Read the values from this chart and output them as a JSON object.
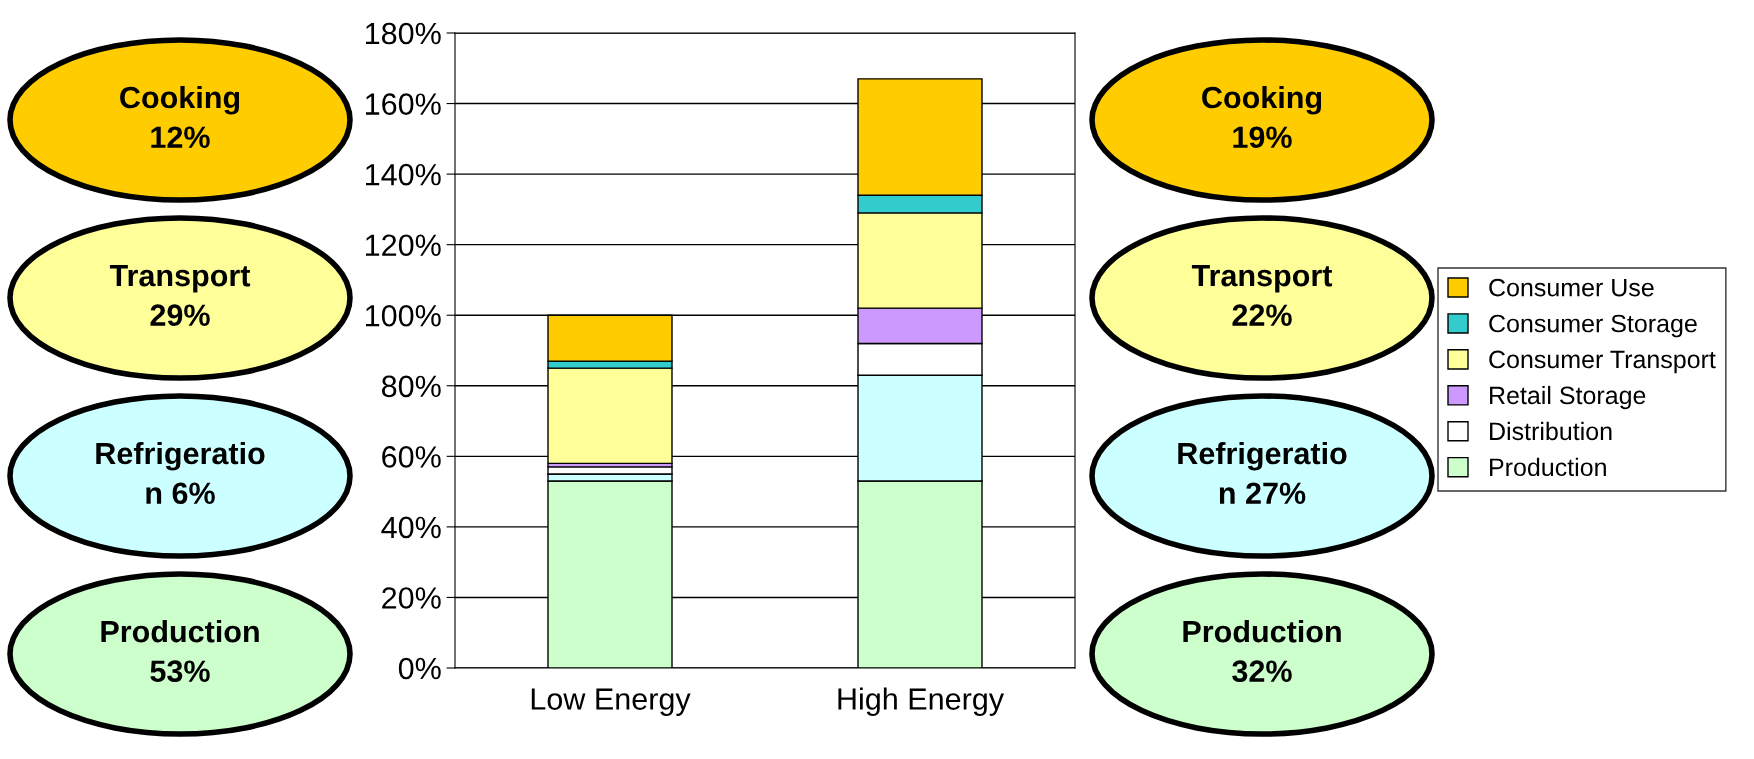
{
  "chart_data": {
    "type": "bar",
    "stacked": true,
    "categories": [
      "Low Energy",
      "High Energy"
    ],
    "series": [
      {
        "name": "Production",
        "color": "#ccffcc",
        "values": [
          53,
          53
        ]
      },
      {
        "name": null,
        "color": "#ccffff",
        "values": [
          2,
          30
        ]
      },
      {
        "name": "Distribution",
        "color": "#ffffff",
        "values": [
          2,
          9
        ]
      },
      {
        "name": "Retail Storage",
        "color": "#cc99ff",
        "values": [
          1,
          10
        ]
      },
      {
        "name": "Consumer Transport",
        "color": "#ffff99",
        "values": [
          27,
          27
        ]
      },
      {
        "name": "Consumer Storage",
        "color": "#33cccc",
        "values": [
          2,
          5
        ]
      },
      {
        "name": "Consumer Use",
        "color": "#ffcc00",
        "values": [
          13,
          33
        ]
      }
    ],
    "ylim": [
      0,
      180
    ],
    "yticks": [
      {
        "value": 0,
        "label": "0%"
      },
      {
        "value": 20,
        "label": "20%"
      },
      {
        "value": 40,
        "label": "40%"
      },
      {
        "value": 60,
        "label": "60%"
      },
      {
        "value": 80,
        "label": "80%"
      },
      {
        "value": 100,
        "label": "100%"
      },
      {
        "value": 120,
        "label": "120%"
      },
      {
        "value": 140,
        "label": "140%"
      },
      {
        "value": 160,
        "label": "160%"
      },
      {
        "value": 180,
        "label": "180%"
      }
    ],
    "grid": "y",
    "legend": "right",
    "annotations": [
      "Cooking\n12%",
      "Transport\n29%",
      "Refrigeratio\nn 6%",
      "Production\n53%",
      "Cooking\n19%",
      "Transport\n22%",
      "Refrigeratio\nn 27%",
      "Production\n32%"
    ]
  }
}
